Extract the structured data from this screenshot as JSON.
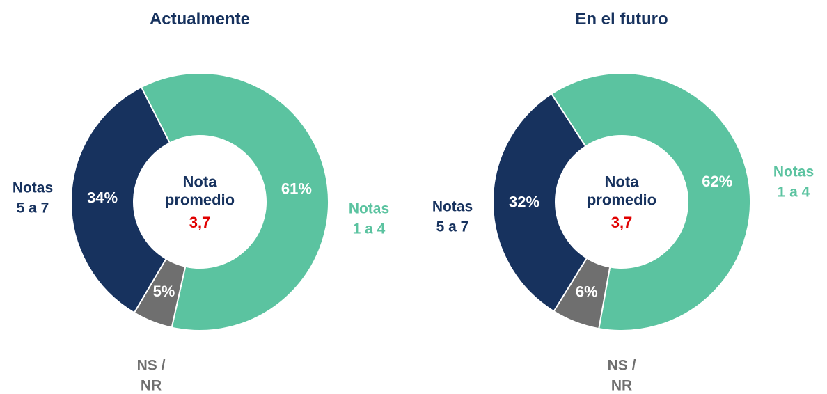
{
  "chart_data": [
    {
      "type": "donut",
      "title": "Actualmente",
      "categories": [
        "Notas 1 a 4",
        "NS / NR",
        "Notas 5 a 7"
      ],
      "values": [
        61,
        5,
        34
      ],
      "value_labels": [
        "61%",
        "5%",
        "34%"
      ],
      "colors": [
        "#5bc3a0",
        "#6f6f6f",
        "#17325e"
      ],
      "center_label": "Nota promedio",
      "center_value": "3,7"
    },
    {
      "type": "donut",
      "title": "En el futuro",
      "categories": [
        "Notas 1 a 4",
        "NS / NR",
        "Notas 5 a 7"
      ],
      "values": [
        62,
        6,
        32
      ],
      "value_labels": [
        "62%",
        "6%",
        "32%"
      ],
      "colors": [
        "#5bc3a0",
        "#6f6f6f",
        "#17325e"
      ],
      "center_label": "Nota promedio",
      "center_value": "3,7"
    }
  ]
}
